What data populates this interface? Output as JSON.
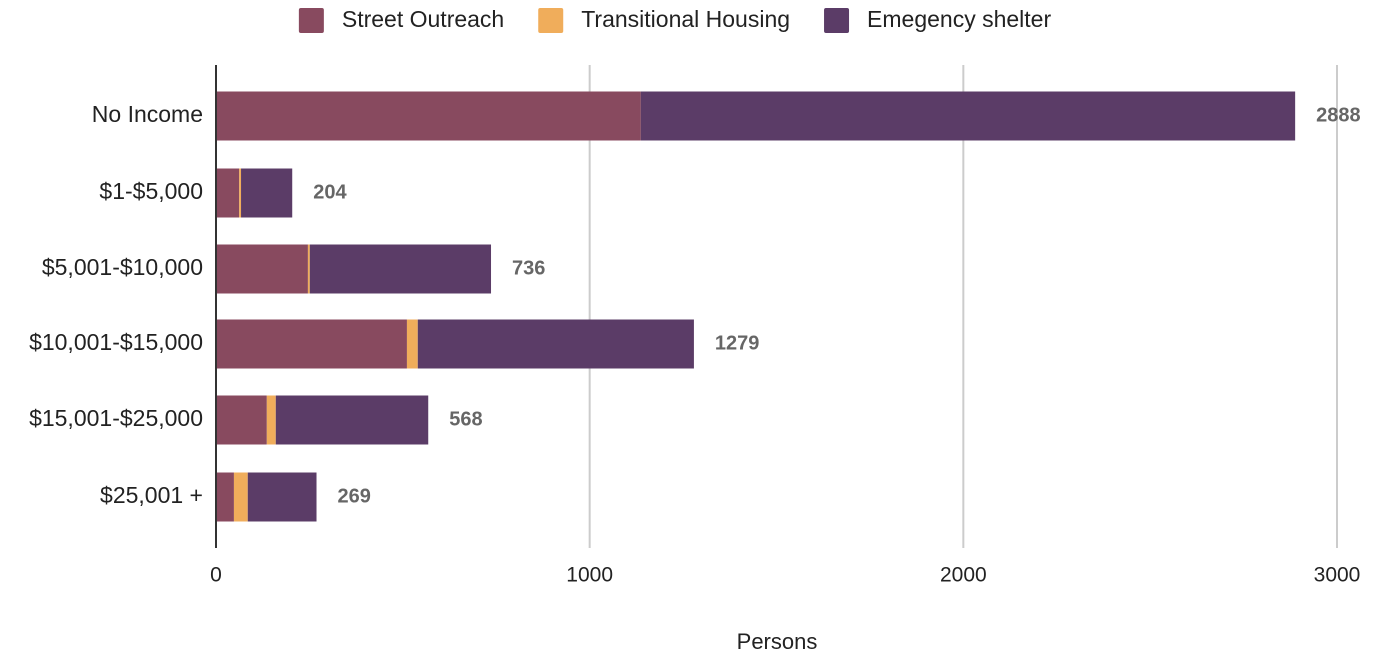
{
  "chart_data": {
    "type": "stacked-bar-horizontal",
    "x_label": "Persons",
    "categories": [
      "No Income",
      "$1-$5,000",
      "$5,001-$10,000",
      "$10,001-$15,000",
      "$15,001-$25,000",
      "$25,001 +"
    ],
    "series": [
      {
        "name": "Street Outreach",
        "color": "#884a5f",
        "values": [
          1137,
          62,
          246,
          511,
          136,
          48
        ]
      },
      {
        "name": "Transitional Housing",
        "color": "#f0ad5b",
        "values": [
          0,
          5,
          5,
          29,
          24,
          37
        ]
      },
      {
        "name": "Emegency shelter",
        "color": "#5b3c67",
        "values": [
          1751,
          137,
          485,
          739,
          408,
          184
        ]
      }
    ],
    "totals": [
      2888,
      204,
      736,
      1279,
      568,
      269
    ],
    "xlim": [
      0,
      3000
    ],
    "xticks": [
      0,
      1000,
      2000,
      3000
    ],
    "grid": true,
    "legend": "top"
  }
}
